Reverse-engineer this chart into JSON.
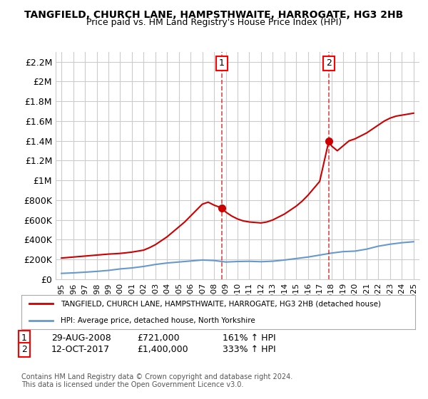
{
  "title": "TANGFIELD, CHURCH LANE, HAMPSTHWAITE, HARROGATE, HG3 2HB",
  "subtitle": "Price paid vs. HM Land Registry's House Price Index (HPI)",
  "legend_label_red": "TANGFIELD, CHURCH LANE, HAMPSTHWAITE, HARROGATE, HG3 2HB (detached house)",
  "legend_label_blue": "HPI: Average price, detached house, North Yorkshire",
  "footer": "Contains HM Land Registry data © Crown copyright and database right 2024.\nThis data is licensed under the Open Government Licence v3.0.",
  "point1_label": "1",
  "point1_date": "29-AUG-2008",
  "point1_price": "£721,000",
  "point1_hpi": "161% ↑ HPI",
  "point1_x": 2008.66,
  "point1_y": 721000,
  "point2_label": "2",
  "point2_date": "12-OCT-2017",
  "point2_price": "£1,400,000",
  "point2_hpi": "333% ↑ HPI",
  "point2_x": 2017.78,
  "point2_y": 1400000,
  "red_color": "#cc0000",
  "blue_color": "#6699cc",
  "grid_color": "#cccccc",
  "background_color": "#ffffff",
  "ylim": [
    0,
    2300000
  ],
  "xlim": [
    1994.5,
    2025.5
  ],
  "ytick_values": [
    0,
    200000,
    400000,
    600000,
    800000,
    1000000,
    1200000,
    1400000,
    1600000,
    1800000,
    2000000,
    2200000
  ],
  "ytick_labels": [
    "£0",
    "£200K",
    "£400K",
    "£600K",
    "£800K",
    "£1M",
    "£1.2M",
    "£1.4M",
    "£1.6M",
    "£1.8M",
    "£2M",
    "£2.2M"
  ],
  "xtick_years": [
    1995,
    1996,
    1997,
    1998,
    1999,
    2000,
    2001,
    2002,
    2003,
    2004,
    2005,
    2006,
    2007,
    2008,
    2009,
    2010,
    2011,
    2012,
    2013,
    2014,
    2015,
    2016,
    2017,
    2018,
    2019,
    2020,
    2021,
    2022,
    2023,
    2024,
    2025
  ],
  "red_x": [
    1995.0,
    1995.5,
    1996.0,
    1996.5,
    1997.0,
    1997.5,
    1998.0,
    1998.5,
    1999.0,
    1999.5,
    2000.0,
    2000.5,
    2001.0,
    2001.5,
    2002.0,
    2002.5,
    2003.0,
    2003.5,
    2004.0,
    2004.5,
    2005.0,
    2005.5,
    2006.0,
    2006.5,
    2007.0,
    2007.5,
    2008.0,
    2008.66,
    2009.0,
    2009.5,
    2010.0,
    2010.5,
    2011.0,
    2011.5,
    2012.0,
    2012.5,
    2013.0,
    2013.5,
    2014.0,
    2014.5,
    2015.0,
    2015.5,
    2016.0,
    2016.5,
    2017.0,
    2017.78,
    2018.0,
    2018.5,
    2019.0,
    2019.5,
    2020.0,
    2020.5,
    2021.0,
    2021.5,
    2022.0,
    2022.5,
    2023.0,
    2023.5,
    2024.0,
    2024.5,
    2025.0
  ],
  "red_y": [
    215000,
    220000,
    225000,
    230000,
    235000,
    240000,
    245000,
    250000,
    255000,
    258000,
    262000,
    268000,
    275000,
    285000,
    295000,
    320000,
    350000,
    390000,
    430000,
    480000,
    530000,
    580000,
    640000,
    700000,
    760000,
    780000,
    750000,
    721000,
    680000,
    640000,
    610000,
    590000,
    580000,
    575000,
    570000,
    580000,
    600000,
    630000,
    660000,
    700000,
    740000,
    790000,
    850000,
    920000,
    990000,
    1400000,
    1350000,
    1300000,
    1350000,
    1400000,
    1420000,
    1450000,
    1480000,
    1520000,
    1560000,
    1600000,
    1630000,
    1650000,
    1660000,
    1670000,
    1680000
  ],
  "blue_x": [
    1995.0,
    1996.0,
    1997.0,
    1998.0,
    1999.0,
    2000.0,
    2001.0,
    2002.0,
    2003.0,
    2004.0,
    2005.0,
    2006.0,
    2007.0,
    2008.0,
    2009.0,
    2010.0,
    2011.0,
    2012.0,
    2013.0,
    2014.0,
    2015.0,
    2016.0,
    2017.0,
    2018.0,
    2019.0,
    2020.0,
    2021.0,
    2022.0,
    2023.0,
    2024.0,
    2025.0
  ],
  "blue_y": [
    60000,
    65000,
    72000,
    80000,
    90000,
    105000,
    115000,
    130000,
    150000,
    165000,
    175000,
    185000,
    195000,
    190000,
    175000,
    180000,
    182000,
    178000,
    183000,
    195000,
    210000,
    225000,
    245000,
    265000,
    280000,
    285000,
    305000,
    335000,
    355000,
    370000,
    380000
  ]
}
